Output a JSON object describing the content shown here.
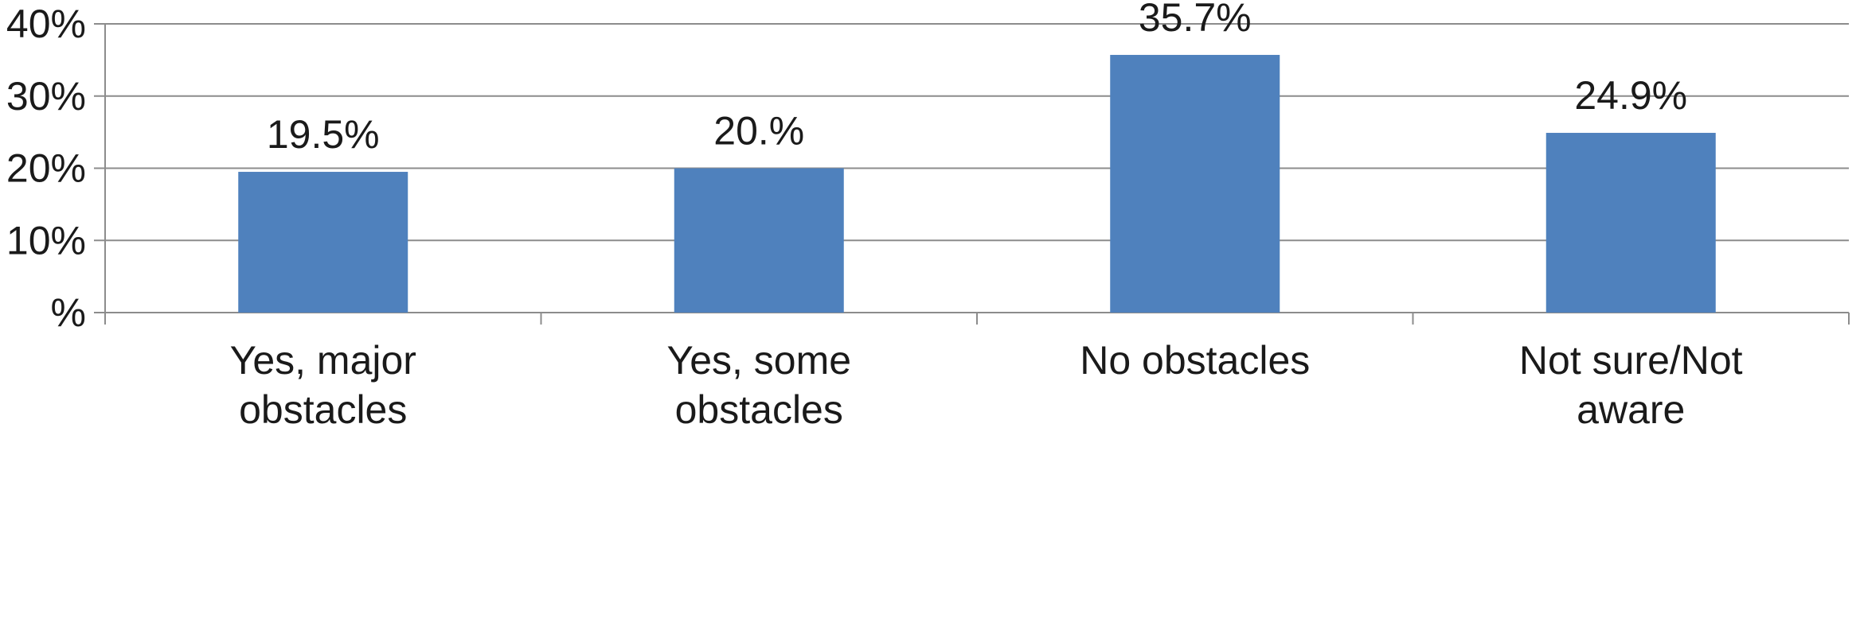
{
  "chart_data": {
    "type": "bar",
    "categories": [
      [
        "Yes, major",
        "obstacles"
      ],
      [
        "Yes, some",
        "obstacles"
      ],
      [
        "No obstacles"
      ],
      [
        "Not sure/Not",
        "aware"
      ]
    ],
    "values": [
      19.5,
      20.0,
      35.7,
      24.9
    ],
    "data_labels": [
      "19.5%",
      "20.%",
      "35.7%",
      "24.9%"
    ],
    "y_ticks": [
      {
        "value": 0,
        "label": "%"
      },
      {
        "value": 10,
        "label": "10%"
      },
      {
        "value": 20,
        "label": "20%"
      },
      {
        "value": 30,
        "label": "30%"
      },
      {
        "value": 40,
        "label": "40%"
      }
    ],
    "ylim": [
      0,
      40
    ],
    "title": "",
    "xlabel": "",
    "ylabel": "",
    "grid": true,
    "legend": "none",
    "bar_color": "#4f81bd",
    "grid_color": "#8c8c8c"
  }
}
